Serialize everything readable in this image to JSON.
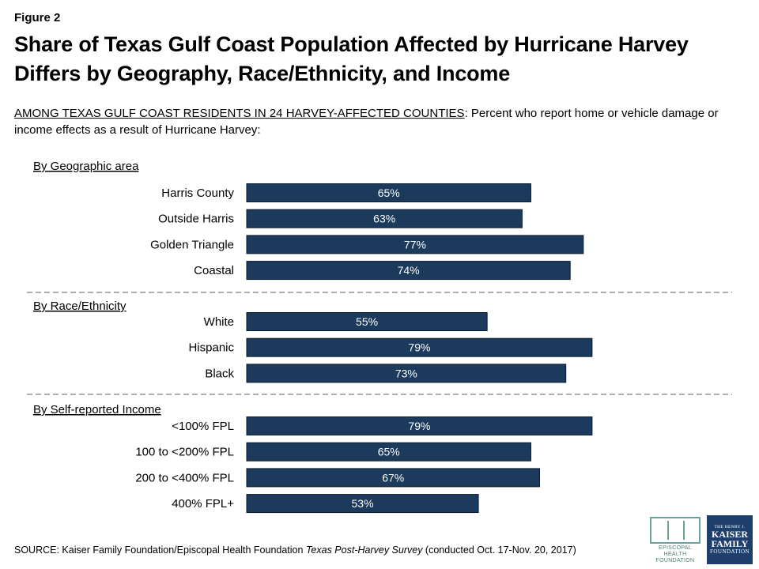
{
  "figure_label": "Figure 2",
  "title": "Share of Texas Gulf Coast Population Affected by Hurricane Harvey Differs by Geography, Race/Ethnicity, and Income",
  "subtitle_lead": "AMONG TEXAS GULF COAST RESIDENTS IN 24 HARVEY-AFFECTED COUNTIES",
  "subtitle_rest": ": Percent who report home or vehicle damage or income effects as a result of Hurricane Harvey:",
  "source_prefix": "SOURCE: Kaiser Family Foundation/Episcopal Health Foundation ",
  "source_italic": "Texas Post-Harvey Survey",
  "source_suffix": " (conducted Oct. 17-Nov. 20, 2017)",
  "logos": {
    "ehf": "EPISCOPAL HEALTH FOUNDATION",
    "kff_line1": "THE HENRY J.",
    "kff_line2": "KAISER",
    "kff_line3": "FAMILY",
    "kff_line4": "FOUNDATION"
  },
  "chart_data": {
    "type": "bar",
    "orientation": "horizontal",
    "unit": "%",
    "bar_color": "#1b3a5c",
    "label_color": "#ffffff",
    "grid": false,
    "groups": [
      {
        "name": "By Geographic area",
        "categories": [
          "Harris County",
          "Outside Harris",
          "Golden Triangle",
          "Coastal"
        ],
        "values": [
          65,
          63,
          77,
          74
        ]
      },
      {
        "name": "By Race/Ethnicity",
        "categories": [
          "White",
          "Hispanic",
          "Black"
        ],
        "values": [
          55,
          79,
          73
        ]
      },
      {
        "name": "By Self-reported Income",
        "categories": [
          "<100% FPL",
          "100 to <200% FPL",
          "200 to <400% FPL",
          "400% FPL+"
        ],
        "values": [
          79,
          65,
          67,
          53
        ]
      }
    ]
  }
}
